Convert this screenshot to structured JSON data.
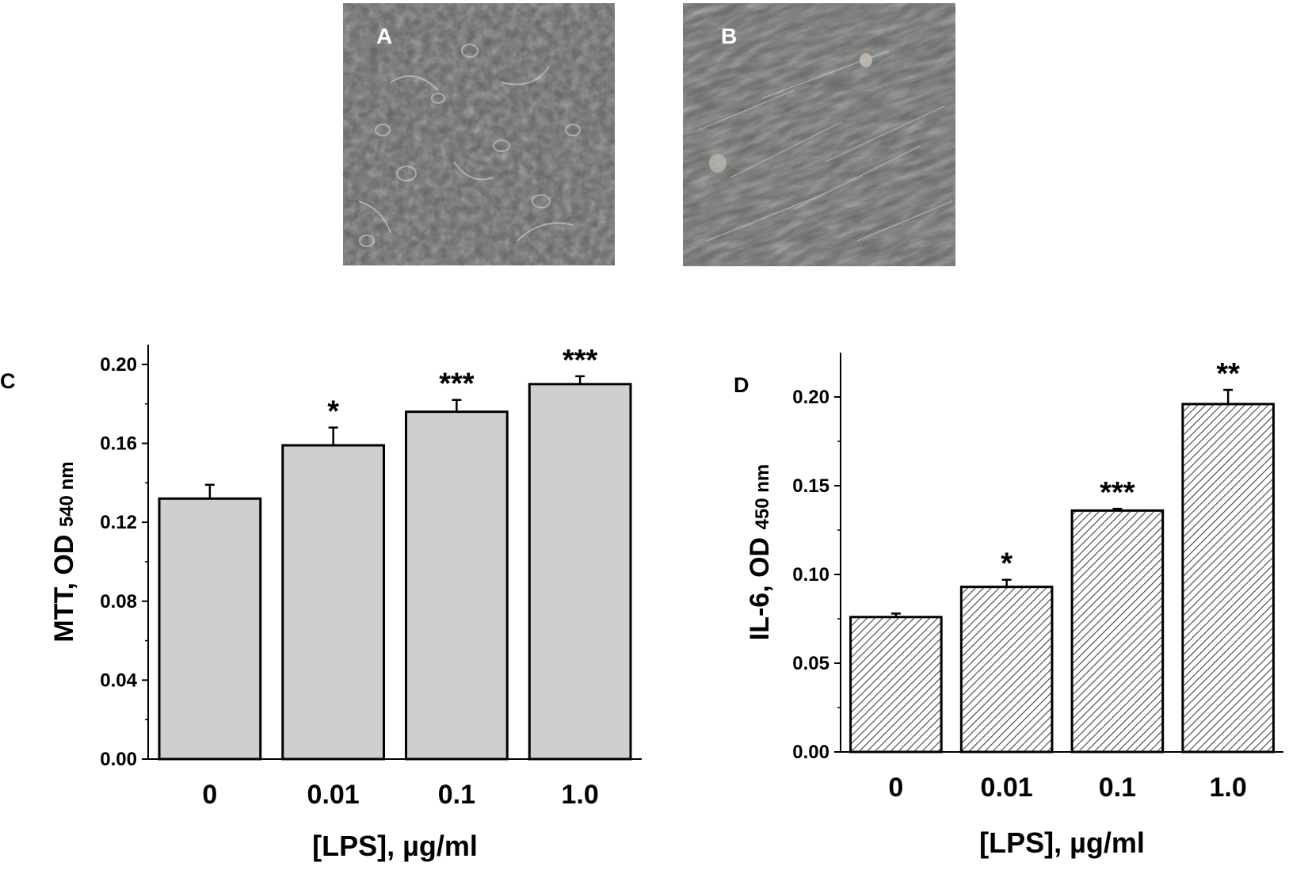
{
  "panels": {
    "a": "A",
    "b": "B",
    "c": "C",
    "d": "D"
  },
  "colors": {
    "micrograph_bg": "#5f625f",
    "bar_fill_c": "#cfcfcf",
    "bar_hatch_d": "#444444",
    "axis": "#000000"
  },
  "chart_data": [
    {
      "type": "bar",
      "panel": "C",
      "categories": [
        "0",
        "0.01",
        "0.1",
        "1.0"
      ],
      "values": [
        0.132,
        0.159,
        0.176,
        0.19
      ],
      "errors": [
        0.007,
        0.009,
        0.006,
        0.004
      ],
      "significance": [
        "",
        "*",
        "***",
        "***"
      ],
      "ylabel_main": "MTT, OD",
      "ylabel_sub": "540 nm",
      "xlabel": "[LPS], µg/ml",
      "ylim": [
        0,
        0.21
      ],
      "yticks": [
        "0.00",
        "0.04",
        "0.08",
        "0.12",
        "0.16",
        "0.20"
      ],
      "ytick_values": [
        0,
        0.04,
        0.08,
        0.12,
        0.16,
        0.2
      ],
      "fill": "solid-gray"
    },
    {
      "type": "bar",
      "panel": "D",
      "categories": [
        "0",
        "0.01",
        "0.1",
        "1.0"
      ],
      "values": [
        0.076,
        0.093,
        0.136,
        0.196
      ],
      "errors": [
        0.002,
        0.004,
        0.001,
        0.008
      ],
      "significance": [
        "",
        "*",
        "***",
        "**"
      ],
      "ylabel_main": "IL-6, OD",
      "ylabel_sub": "450 nm",
      "xlabel": "[LPS], µg/ml",
      "ylim": [
        0,
        0.225
      ],
      "yticks": [
        "0.00",
        "0.05",
        "0.10",
        "0.15",
        "0.20"
      ],
      "ytick_values": [
        0,
        0.05,
        0.1,
        0.15,
        0.2
      ],
      "fill": "hatched"
    }
  ]
}
